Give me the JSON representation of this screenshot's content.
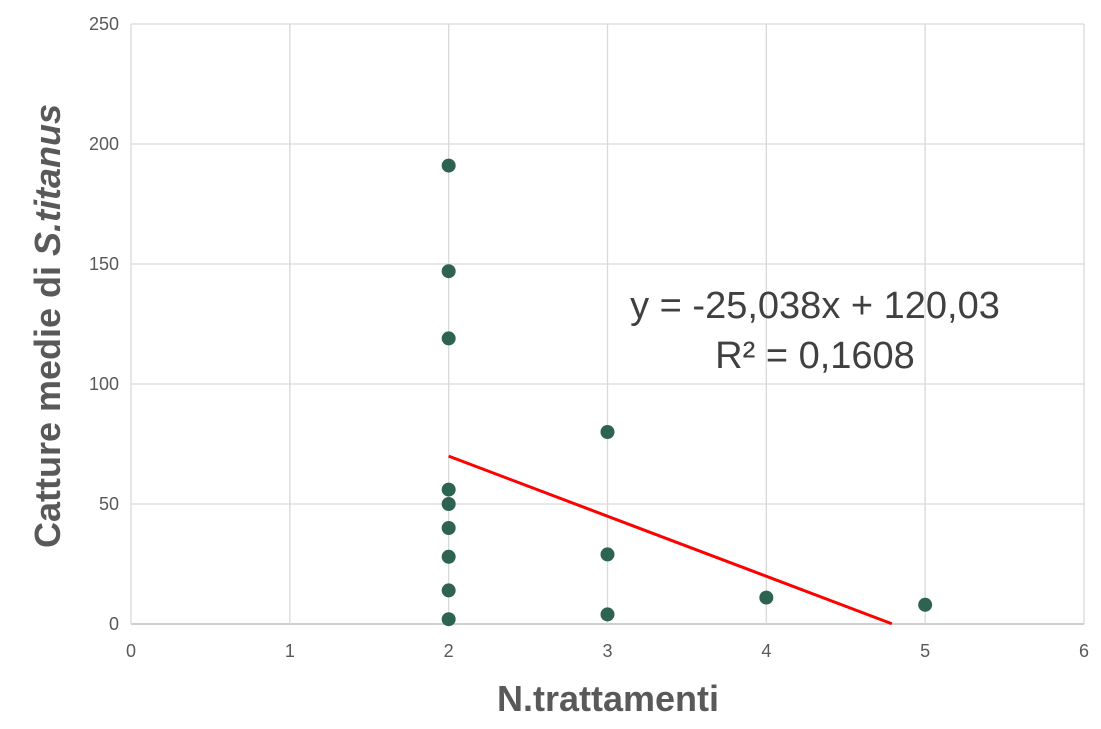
{
  "chart_data": {
    "type": "scatter",
    "xlabel": "N.trattamenti",
    "ylabel_main": "Catture medie di ",
    "ylabel_italic": "S.titanus",
    "xlim": [
      0,
      6
    ],
    "ylim": [
      0,
      250
    ],
    "x_ticks": [
      0,
      1,
      2,
      3,
      4,
      5,
      6
    ],
    "y_ticks": [
      0,
      50,
      100,
      150,
      200,
      250
    ],
    "grid": true,
    "colors": {
      "points": "#2e6352",
      "trendline": "#ff0000",
      "grid": "#d9d9d9",
      "text": "#595959"
    },
    "series": [
      {
        "x": [
          2,
          2,
          2,
          2,
          2,
          2,
          2,
          2,
          2,
          3,
          3,
          3,
          4,
          5
        ],
        "y": [
          191,
          147,
          119,
          56,
          50,
          40,
          28,
          14,
          2,
          80,
          29,
          4,
          11,
          8
        ]
      }
    ],
    "trendline": {
      "slope": -25.038,
      "intercept": 120.03,
      "x_range": [
        2,
        4.79
      ],
      "equation": "y = -25,038x + 120,03",
      "r_squared": "R² = 0,1608"
    }
  }
}
